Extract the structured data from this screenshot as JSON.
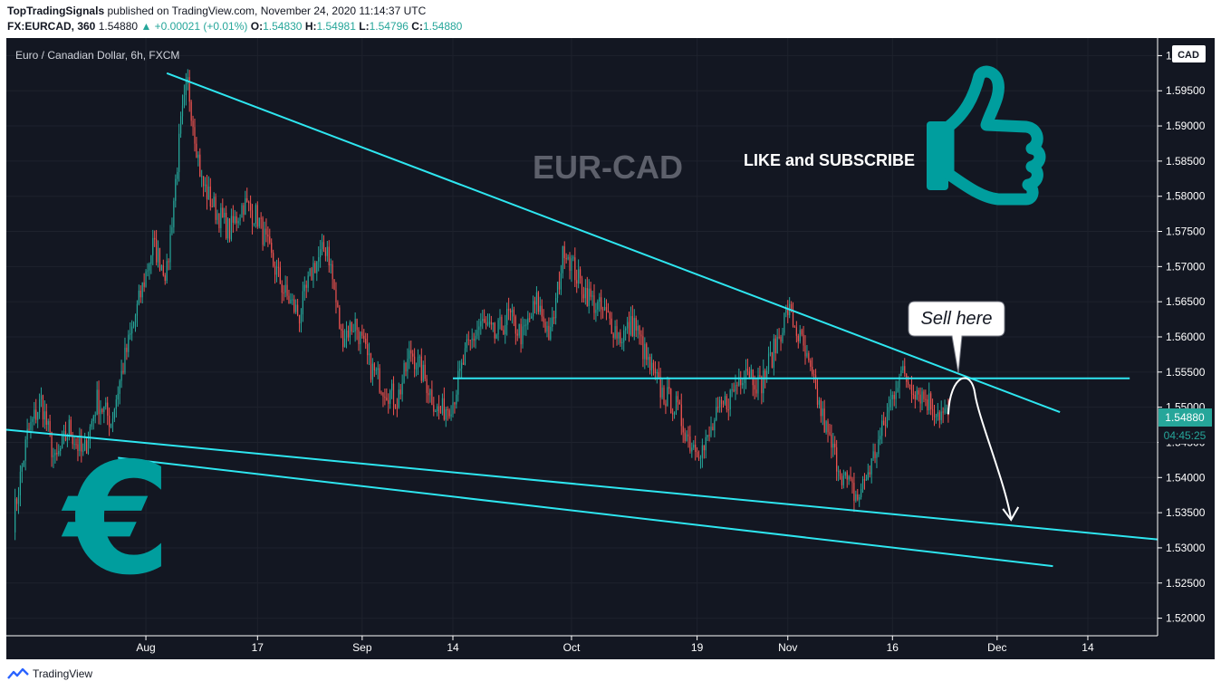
{
  "header": {
    "publisher": "TopTradingSignals",
    "published_text": "published on TradingView.com, November 24, 2020 11:14:37 UTC",
    "symbol": "FX:EURCAD, 360",
    "last": "1.54880",
    "change": "▲ +0.00021 (+0.01%)",
    "o_label": "O:",
    "o": "1.54830",
    "h_label": "H:",
    "h": "1.54981",
    "l_label": "L:",
    "l": "1.54796",
    "c_label": "C:",
    "c": "1.54880"
  },
  "legend_title": "Euro / Canadian Dollar, 6h, FXCM",
  "annotations": {
    "pair": "EUR-CAD",
    "like": "LIKE and SUBSCRIBE",
    "sell": "Sell here",
    "euro_symbol": "€"
  },
  "price_axis": {
    "currency": "CAD",
    "top_label": "1.6",
    "current_price": "1.54880",
    "countdown": "04:45:25"
  },
  "footer": {
    "brand": "TradingView"
  },
  "colors": {
    "background": "#131722",
    "up": "#26a69a",
    "down": "#ef5350",
    "trendline": "#2ee6f0",
    "accent": "#009e9e",
    "pair_text": "#5d606b"
  },
  "icons": [
    "thumbs-up-icon",
    "euro-icon",
    "tradingview-logo-icon"
  ],
  "chart_data": {
    "type": "candlestick",
    "title": "Euro / Canadian Dollar, 6h, FXCM",
    "xlabel": "",
    "ylabel": "",
    "ylim": [
      1.5175,
      1.6025
    ],
    "yticks": [
      1.52,
      1.525,
      1.53,
      1.535,
      1.54,
      1.545,
      1.55,
      1.555,
      1.56,
      1.565,
      1.57,
      1.575,
      1.58,
      1.585,
      1.59,
      1.595,
      1.6
    ],
    "x_ticks": [
      {
        "label": "Aug",
        "date": "2020-08-01"
      },
      {
        "label": "17",
        "date": "2020-08-17"
      },
      {
        "label": "Sep",
        "date": "2020-09-01"
      },
      {
        "label": "14",
        "date": "2020-09-14"
      },
      {
        "label": "Oct",
        "date": "2020-10-01"
      },
      {
        "label": "19",
        "date": "2020-10-19"
      },
      {
        "label": "Nov",
        "date": "2020-11-01"
      },
      {
        "label": "16",
        "date": "2020-11-16"
      },
      {
        "label": "Dec",
        "date": "2020-12-01"
      },
      {
        "label": "14",
        "date": "2020-12-14"
      }
    ],
    "xlim": [
      "2020-07-12",
      "2020-12-24"
    ],
    "series_close_path": [
      [
        "2020-07-13",
        1.534
      ],
      [
        "2020-07-15",
        1.546
      ],
      [
        "2020-07-17",
        1.551
      ],
      [
        "2020-07-19",
        1.542
      ],
      [
        "2020-07-21",
        1.547
      ],
      [
        "2020-07-23",
        1.543
      ],
      [
        "2020-07-25",
        1.551
      ],
      [
        "2020-07-27",
        1.548
      ],
      [
        "2020-07-29",
        1.557
      ],
      [
        "2020-07-31",
        1.565
      ],
      [
        "2020-08-02",
        1.573
      ],
      [
        "2020-08-04",
        1.569
      ],
      [
        "2020-08-06",
        1.59
      ],
      [
        "2020-08-07",
        1.596
      ],
      [
        "2020-08-09",
        1.582
      ],
      [
        "2020-08-11",
        1.578
      ],
      [
        "2020-08-13",
        1.575
      ],
      [
        "2020-08-15",
        1.579
      ],
      [
        "2020-08-17",
        1.577
      ],
      [
        "2020-08-19",
        1.571
      ],
      [
        "2020-08-21",
        1.566
      ],
      [
        "2020-08-23",
        1.563
      ],
      [
        "2020-08-25",
        1.57
      ],
      [
        "2020-08-27",
        1.573
      ],
      [
        "2020-08-29",
        1.56
      ],
      [
        "2020-08-31",
        1.562
      ],
      [
        "2020-09-02",
        1.556
      ],
      [
        "2020-09-04",
        1.553
      ],
      [
        "2020-09-06",
        1.551
      ],
      [
        "2020-09-08",
        1.558
      ],
      [
        "2020-09-10",
        1.554
      ],
      [
        "2020-09-12",
        1.549
      ],
      [
        "2020-09-14",
        1.551
      ],
      [
        "2020-09-16",
        1.558
      ],
      [
        "2020-09-18",
        1.562
      ],
      [
        "2020-09-20",
        1.56
      ],
      [
        "2020-09-22",
        1.563
      ],
      [
        "2020-09-24",
        1.56
      ],
      [
        "2020-09-26",
        1.565
      ],
      [
        "2020-09-28",
        1.56
      ],
      [
        "2020-09-30",
        1.573
      ],
      [
        "2020-10-02",
        1.568
      ],
      [
        "2020-10-04",
        1.565
      ],
      [
        "2020-10-06",
        1.563
      ],
      [
        "2020-10-08",
        1.56
      ],
      [
        "2020-10-10",
        1.562
      ],
      [
        "2020-10-12",
        1.556
      ],
      [
        "2020-10-14",
        1.552
      ],
      [
        "2020-10-16",
        1.55
      ],
      [
        "2020-10-18",
        1.545
      ],
      [
        "2020-10-20",
        1.544
      ],
      [
        "2020-10-22",
        1.549
      ],
      [
        "2020-10-24",
        1.552
      ],
      [
        "2020-10-26",
        1.556
      ],
      [
        "2020-10-28",
        1.553
      ],
      [
        "2020-10-30",
        1.558
      ],
      [
        "2020-11-01",
        1.564
      ],
      [
        "2020-11-03",
        1.559
      ],
      [
        "2020-11-05",
        1.552
      ],
      [
        "2020-11-07",
        1.545
      ],
      [
        "2020-11-09",
        1.54
      ],
      [
        "2020-11-11",
        1.537
      ],
      [
        "2020-11-13",
        1.542
      ],
      [
        "2020-11-15",
        1.548
      ],
      [
        "2020-11-17",
        1.555
      ],
      [
        "2020-11-19",
        1.553
      ],
      [
        "2020-11-21",
        1.551
      ],
      [
        "2020-11-23",
        1.549
      ],
      [
        "2020-11-24",
        1.5488
      ]
    ],
    "trendlines": [
      {
        "name": "descending resistance",
        "from": [
          "2020-08-04",
          1.5975
        ],
        "to": [
          "2020-12-10",
          1.5493
        ]
      },
      {
        "name": "horizontal level",
        "from": [
          "2020-09-14",
          1.5541
        ],
        "to": [
          "2020-12-20",
          1.5541
        ]
      },
      {
        "name": "descending support",
        "from": [
          "2020-07-28",
          1.5428
        ],
        "to": [
          "2020-12-09",
          1.5274
        ]
      },
      {
        "name": "long support",
        "from": [
          "2020-07-12",
          1.5468
        ],
        "to": [
          "2020-12-24",
          1.5312
        ]
      }
    ],
    "projection": {
      "from": [
        "2020-11-24",
        1.549
      ],
      "peak": [
        "2020-11-26",
        1.553
      ],
      "to": [
        "2020-12-03",
        1.534
      ]
    }
  }
}
